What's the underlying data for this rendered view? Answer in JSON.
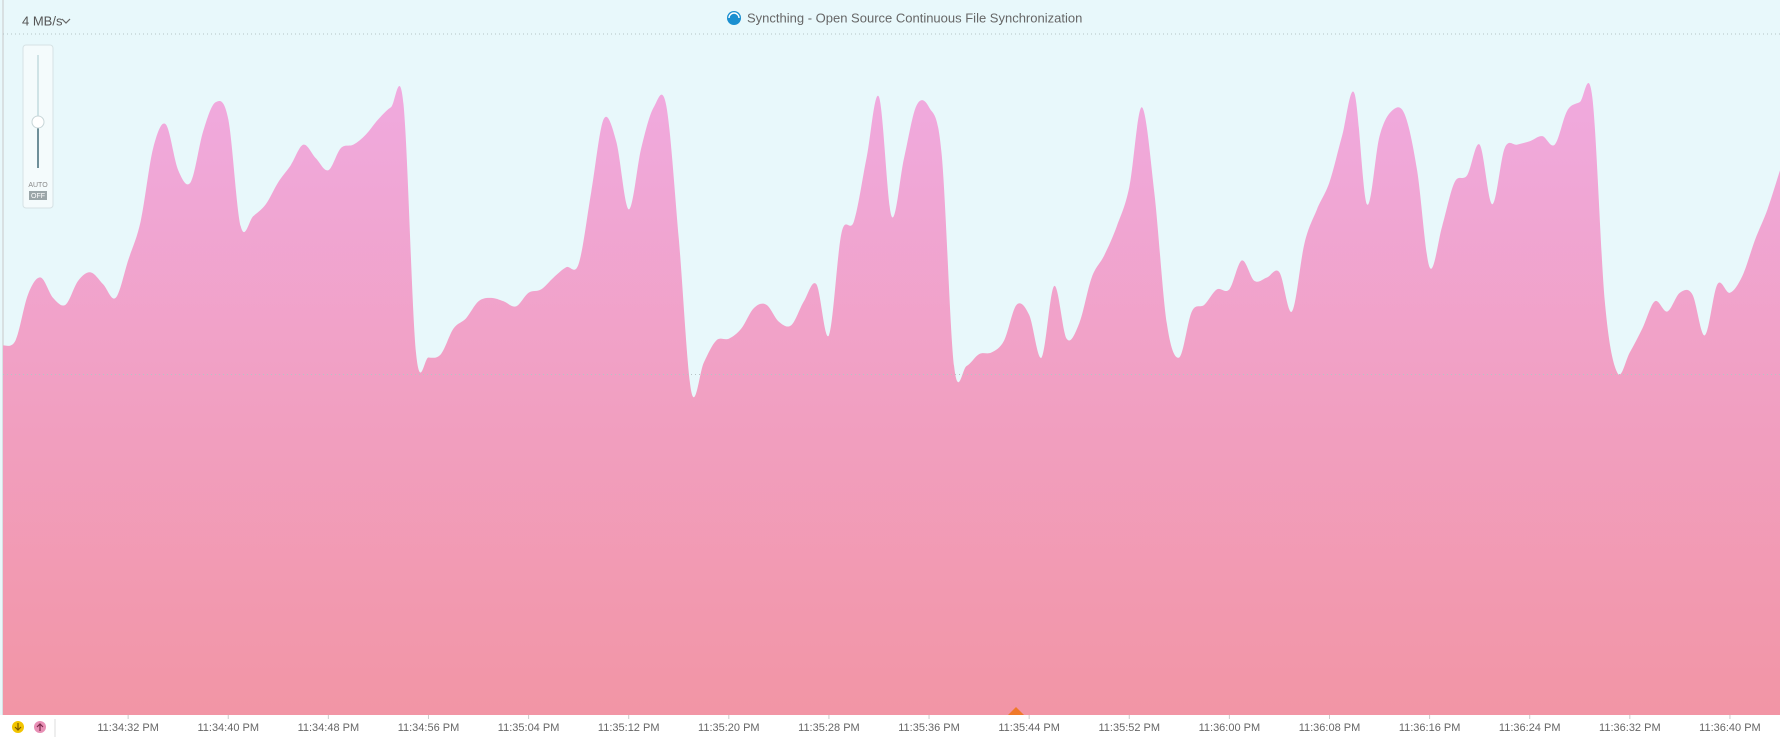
{
  "chart_data": {
    "type": "area",
    "title": "Syncthing - Open Source Continuous File Synchronization",
    "scale_label": "4 MB/s",
    "slider": {
      "auto": "AUTO",
      "off": "OFF"
    },
    "color_top": "#f0aadf",
    "color_bottom": "#f295a5",
    "background": "#e8f8fb",
    "grid": true,
    "ylim": [
      0,
      4
    ],
    "yticks": [
      2,
      4
    ],
    "xlim": [
      "11:34:22 PM",
      "11:36:44 PM"
    ],
    "xticks": [
      "11:34:32 PM",
      "11:34:40 PM",
      "11:34:48 PM",
      "11:34:56 PM",
      "11:35:04 PM",
      "11:35:12 PM",
      "11:35:20 PM",
      "11:35:28 PM",
      "11:35:36 PM",
      "11:35:44 PM",
      "11:35:52 PM",
      "11:36:00 PM",
      "11:36:08 PM",
      "11:36:16 PM",
      "11:36:24 PM",
      "11:36:32 PM",
      "11:36:40 PM"
    ],
    "x": [
      "11:34:22 PM",
      "11:34:23 PM",
      "11:34:24 PM",
      "11:34:25 PM",
      "11:34:26 PM",
      "11:34:27 PM",
      "11:34:28 PM",
      "11:34:29 PM",
      "11:34:30 PM",
      "11:34:31 PM",
      "11:34:32 PM",
      "11:34:33 PM",
      "11:34:34 PM",
      "11:34:35 PM",
      "11:34:36 PM",
      "11:34:37 PM",
      "11:34:38 PM",
      "11:34:39 PM",
      "11:34:40 PM",
      "11:34:41 PM",
      "11:34:42 PM",
      "11:34:43 PM",
      "11:34:44 PM",
      "11:34:45 PM",
      "11:34:46 PM",
      "11:34:47 PM",
      "11:34:48 PM",
      "11:34:49 PM",
      "11:34:50 PM",
      "11:34:51 PM",
      "11:34:52 PM",
      "11:34:53 PM",
      "11:34:54 PM",
      "11:34:55 PM",
      "11:34:56 PM",
      "11:34:57 PM",
      "11:34:58 PM",
      "11:34:59 PM",
      "11:35:00 PM",
      "11:35:01 PM",
      "11:35:02 PM",
      "11:35:03 PM",
      "11:35:04 PM",
      "11:35:05 PM",
      "11:35:06 PM",
      "11:35:07 PM",
      "11:35:08 PM",
      "11:35:09 PM",
      "11:35:10 PM",
      "11:35:11 PM",
      "11:35:12 PM",
      "11:35:13 PM",
      "11:35:14 PM",
      "11:35:15 PM",
      "11:35:16 PM",
      "11:35:17 PM",
      "11:35:18 PM",
      "11:35:19 PM",
      "11:35:20 PM",
      "11:35:21 PM",
      "11:35:22 PM",
      "11:35:23 PM",
      "11:35:24 PM",
      "11:35:25 PM",
      "11:35:26 PM",
      "11:35:27 PM",
      "11:35:28 PM",
      "11:35:29 PM",
      "11:35:30 PM",
      "11:35:31 PM",
      "11:35:32 PM",
      "11:35:33 PM",
      "11:35:34 PM",
      "11:35:35 PM",
      "11:35:36 PM",
      "11:35:37 PM",
      "11:35:38 PM",
      "11:35:39 PM",
      "11:35:40 PM",
      "11:35:41 PM",
      "11:35:42 PM",
      "11:35:43 PM",
      "11:35:44 PM",
      "11:35:45 PM",
      "11:35:46 PM",
      "11:35:47 PM",
      "11:35:48 PM",
      "11:35:49 PM",
      "11:35:50 PM",
      "11:35:51 PM",
      "11:35:52 PM",
      "11:35:53 PM",
      "11:35:54 PM",
      "11:35:55 PM",
      "11:35:56 PM",
      "11:35:57 PM",
      "11:35:58 PM",
      "11:35:59 PM",
      "11:36:00 PM",
      "11:36:01 PM",
      "11:36:02 PM",
      "11:36:03 PM",
      "11:36:04 PM",
      "11:36:05 PM",
      "11:36:06 PM",
      "11:36:07 PM",
      "11:36:08 PM",
      "11:36:09 PM",
      "11:36:10 PM",
      "11:36:11 PM",
      "11:36:12 PM",
      "11:36:13 PM",
      "11:36:14 PM",
      "11:36:15 PM",
      "11:36:16 PM",
      "11:36:17 PM",
      "11:36:18 PM",
      "11:36:19 PM",
      "11:36:20 PM",
      "11:36:21 PM",
      "11:36:22 PM",
      "11:36:23 PM",
      "11:36:24 PM",
      "11:36:25 PM",
      "11:36:26 PM",
      "11:36:27 PM",
      "11:36:28 PM",
      "11:36:29 PM",
      "11:36:30 PM",
      "11:36:31 PM",
      "11:36:32 PM",
      "11:36:33 PM",
      "11:36:34 PM",
      "11:36:35 PM",
      "11:36:36 PM",
      "11:36:37 PM",
      "11:36:38 PM",
      "11:36:39 PM",
      "11:36:40 PM",
      "11:36:41 PM",
      "11:36:42 PM",
      "11:36:43 PM",
      "11:36:44 PM"
    ],
    "values": [
      2.17,
      2.2,
      2.47,
      2.57,
      2.45,
      2.41,
      2.55,
      2.6,
      2.53,
      2.45,
      2.67,
      2.9,
      3.33,
      3.47,
      3.2,
      3.13,
      3.43,
      3.6,
      3.5,
      2.87,
      2.93,
      3.0,
      3.13,
      3.23,
      3.35,
      3.27,
      3.2,
      3.33,
      3.35,
      3.41,
      3.5,
      3.57,
      3.59,
      2.13,
      2.1,
      2.12,
      2.27,
      2.33,
      2.43,
      2.45,
      2.43,
      2.4,
      2.48,
      2.5,
      2.57,
      2.63,
      2.65,
      3.07,
      3.5,
      3.37,
      2.97,
      3.33,
      3.57,
      3.58,
      2.8,
      1.9,
      2.07,
      2.2,
      2.21,
      2.27,
      2.39,
      2.41,
      2.31,
      2.29,
      2.43,
      2.53,
      2.23,
      2.83,
      2.9,
      3.27,
      3.63,
      2.93,
      3.27,
      3.58,
      3.57,
      3.3,
      2.05,
      2.05,
      2.12,
      2.13,
      2.2,
      2.41,
      2.35,
      2.1,
      2.52,
      2.21,
      2.3,
      2.57,
      2.7,
      2.87,
      3.1,
      3.57,
      3.07,
      2.3,
      2.1,
      2.37,
      2.41,
      2.5,
      2.5,
      2.67,
      2.55,
      2.57,
      2.6,
      2.37,
      2.77,
      2.97,
      3.13,
      3.4,
      3.65,
      3.0,
      3.4,
      3.55,
      3.53,
      3.2,
      2.63,
      2.87,
      3.13,
      3.17,
      3.35,
      3.0,
      3.33,
      3.35,
      3.37,
      3.4,
      3.35,
      3.55,
      3.6,
      3.63,
      2.43,
      2.01,
      2.13,
      2.27,
      2.43,
      2.37,
      2.48,
      2.47,
      2.23,
      2.53,
      2.48,
      2.58,
      2.79,
      2.97,
      3.2
    ]
  }
}
